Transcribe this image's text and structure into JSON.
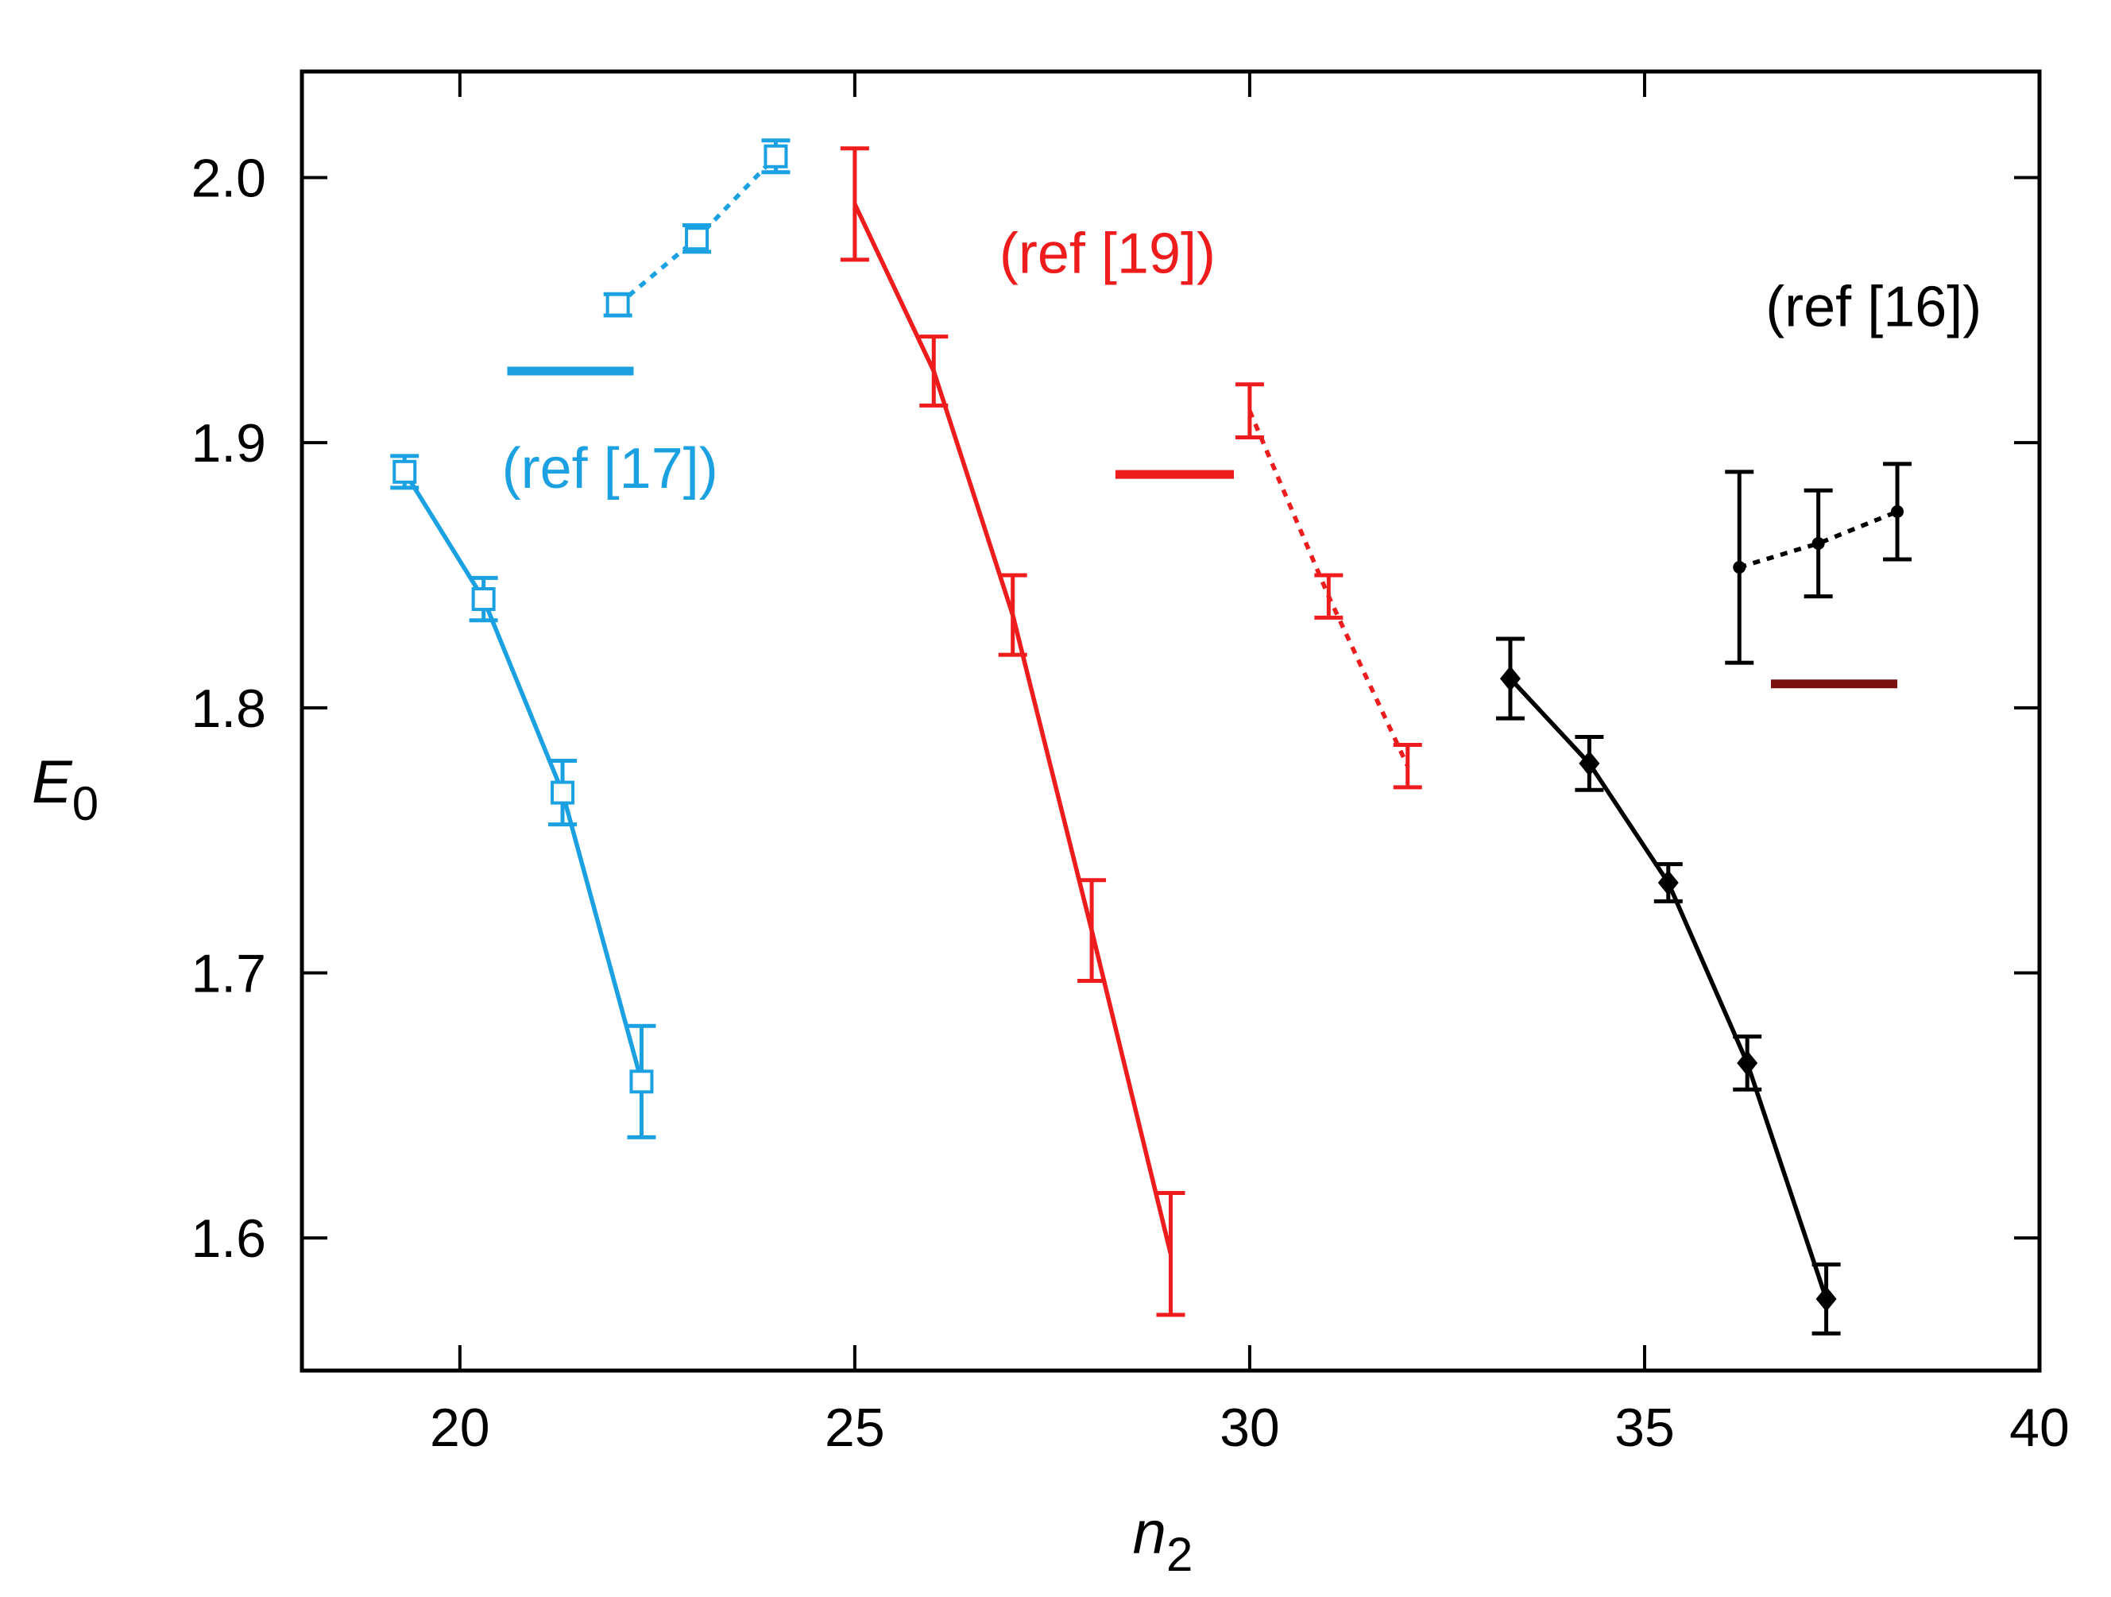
{
  "chart_data": {
    "type": "scatter",
    "title": "",
    "xlabel": {
      "main": "n",
      "sub": "2"
    },
    "ylabel": {
      "main": "E",
      "sub": "0"
    },
    "xlim": [
      18,
      40
    ],
    "ylim": [
      1.55,
      2.04
    ],
    "xticks": [
      20,
      25,
      30,
      35,
      40
    ],
    "xtick_labels": [
      "20",
      "25",
      "30",
      "35",
      "40"
    ],
    "yticks": [
      1.6,
      1.7,
      1.8,
      1.9,
      2.0
    ],
    "ytick_labels": [
      "1.6",
      "1.7",
      "1.8",
      "1.9",
      "2.0"
    ],
    "grid": false,
    "series": [
      {
        "name": "ref17-solid",
        "color": "#1ba1e2",
        "marker": "open-square",
        "line": "solid",
        "x": [
          19.3,
          20.3,
          21.3,
          22.3
        ],
        "y": [
          1.889,
          1.841,
          1.768,
          1.659
        ],
        "err": [
          0.006,
          0.008,
          0.012,
          0.021
        ]
      },
      {
        "name": "ref17-dotted",
        "color": "#1ba1e2",
        "marker": "open-square",
        "line": "dotted",
        "x": [
          22.0,
          23.0,
          24.0
        ],
        "y": [
          1.952,
          1.977,
          2.008
        ],
        "err": [
          0.004,
          0.005,
          0.006
        ]
      },
      {
        "name": "ref19-solid",
        "color": "#ee1c1c",
        "marker": "none",
        "line": "solid",
        "x": [
          25,
          26,
          27,
          28,
          29
        ],
        "y": [
          1.99,
          1.927,
          1.835,
          1.716,
          1.594
        ],
        "err": [
          0.021,
          0.013,
          0.015,
          0.019,
          0.023
        ]
      },
      {
        "name": "ref19-dotted",
        "color": "#ee1c1c",
        "marker": "none",
        "line": "dotted",
        "x": [
          30,
          31,
          32
        ],
        "y": [
          1.912,
          1.842,
          1.778
        ],
        "err": [
          0.01,
          0.008,
          0.008
        ]
      },
      {
        "name": "ref16-solid",
        "color": "#000000",
        "marker": "diamond",
        "line": "solid",
        "x": [
          33.3,
          34.3,
          35.3,
          36.3,
          37.3
        ],
        "y": [
          1.811,
          1.779,
          1.734,
          1.666,
          1.577
        ],
        "err": [
          0.015,
          0.01,
          0.007,
          0.01,
          0.013
        ]
      },
      {
        "name": "ref16-dotted",
        "color": "#000000",
        "marker": "dot",
        "line": "dotted",
        "x": [
          36.2,
          37.2,
          38.2
        ],
        "y": [
          1.853,
          1.862,
          1.874
        ],
        "err": [
          0.036,
          0.02,
          0.018
        ]
      }
    ],
    "reference_lines": [
      {
        "name": "ref17-level",
        "color": "#1ba1e2",
        "y": 1.927,
        "x": [
          20.6,
          22.2
        ]
      },
      {
        "name": "ref19-level",
        "color": "#ee1c1c",
        "y": 1.888,
        "x": [
          28.3,
          29.8
        ]
      },
      {
        "name": "ref16-level",
        "color": "#7a1010",
        "y": 1.809,
        "x": [
          36.6,
          38.2
        ]
      }
    ],
    "annotations": [
      {
        "name": "ref17-label",
        "text": "(ref [17])",
        "color": "#1ba1e2",
        "x": 21.9,
        "y": 1.883
      },
      {
        "name": "ref19-label",
        "text": "(ref [19])",
        "color": "#ee1c1c",
        "x": 28.2,
        "y": 1.964
      },
      {
        "name": "ref16-label",
        "text": "(ref [16])",
        "color": "#000000",
        "x": 37.9,
        "y": 1.944
      }
    ]
  }
}
